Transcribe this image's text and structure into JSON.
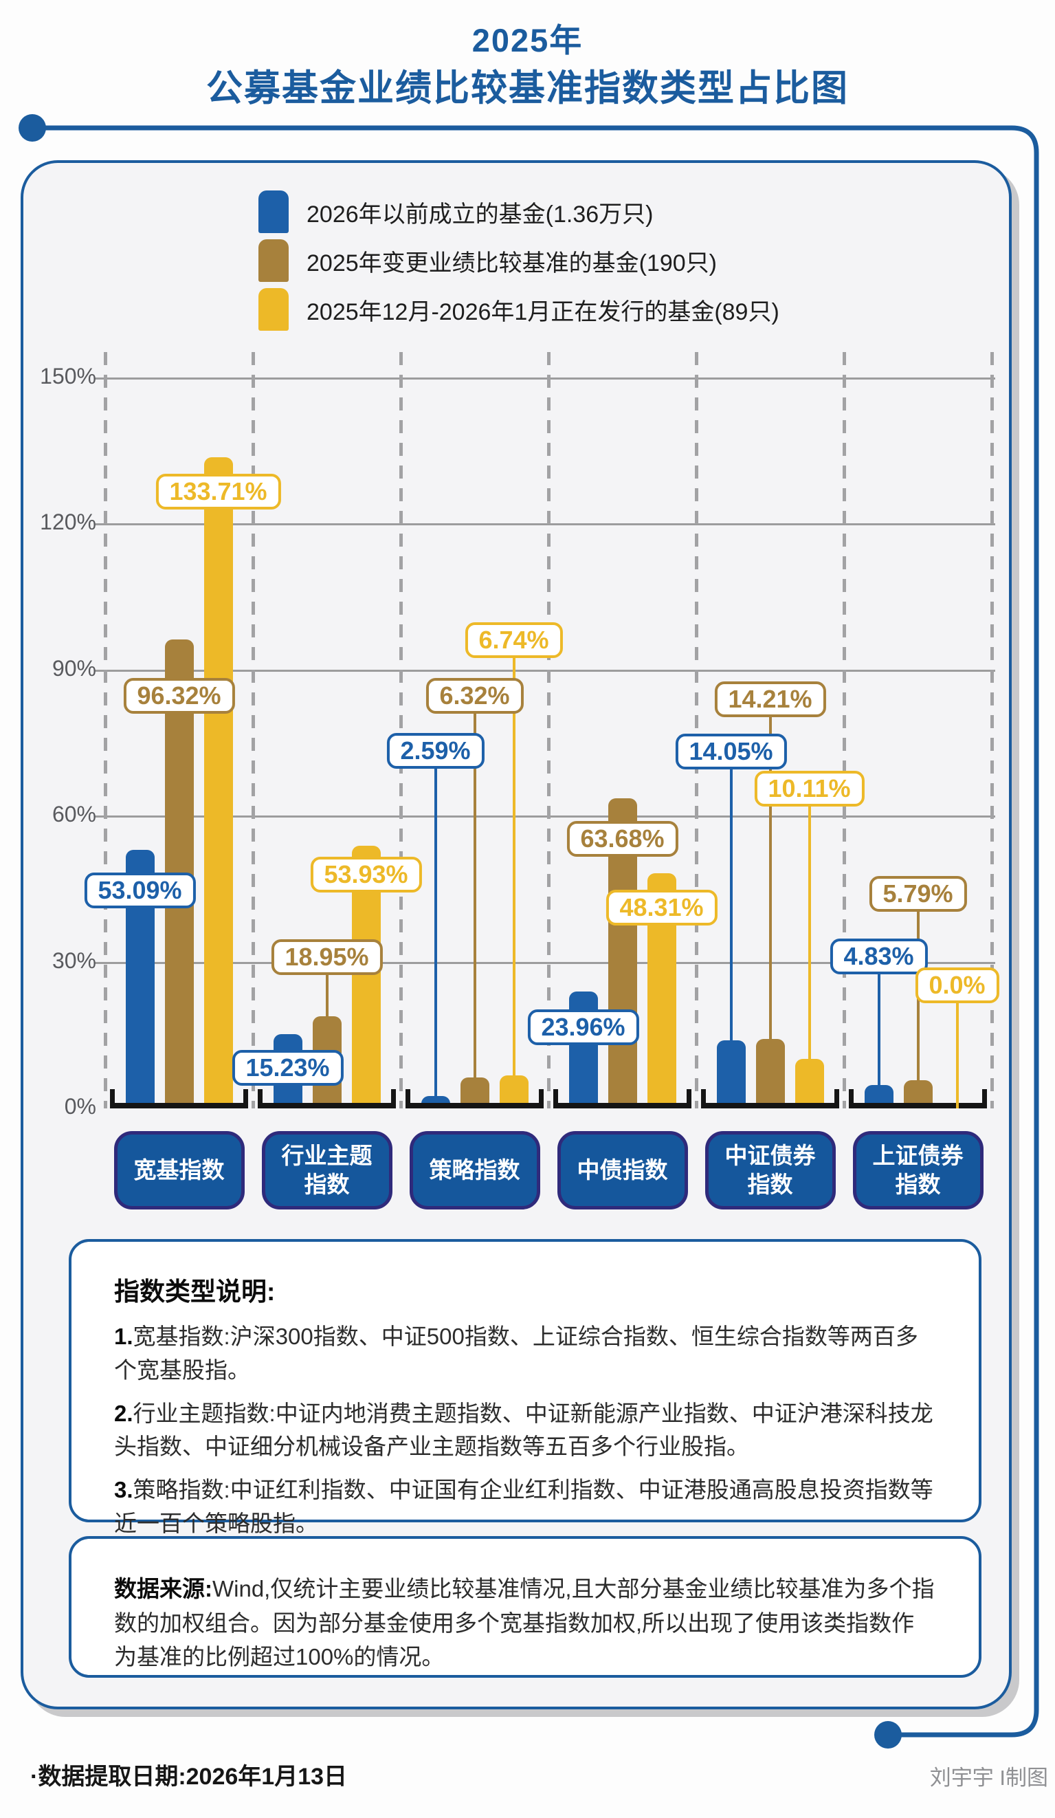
{
  "title": {
    "line1": "2025年",
    "line2": "公募基金业绩比较基准指数类型占比图"
  },
  "accent_color": "#1b5c9e",
  "chart_data": {
    "type": "bar",
    "title": "2025年公募基金业绩比较基准指数类型占比图",
    "xlabel": "",
    "ylabel": "",
    "ylim": [
      0,
      150
    ],
    "grid": true,
    "legend_position": "top-inside",
    "y_ticks": [
      "0%",
      "30%",
      "60%",
      "90%",
      "120%",
      "150%"
    ],
    "categories": [
      "宽基指数",
      "行业主题\n指数",
      "策略指数",
      "中债指数",
      "中证债券\n指数",
      "上证债券\n指数"
    ],
    "series": [
      {
        "name": "2026年以前成立的基金(1.36万只)",
        "color": "#1d60a9",
        "values": [
          53.09,
          15.23,
          2.59,
          23.96,
          14.05,
          4.83
        ],
        "labels": [
          "53.09%",
          "15.23%",
          "2.59%",
          "23.96%",
          "14.05%",
          "4.83%"
        ],
        "label_cy": [
          1295,
          1553,
          1092,
          1494,
          1093,
          1391
        ]
      },
      {
        "name": "2025年变更业绩比较基准的基金(190只)",
        "color": "#a7813c",
        "values": [
          96.32,
          18.95,
          6.32,
          63.68,
          14.21,
          5.79
        ],
        "labels": [
          "96.32%",
          "18.95%",
          "6.32%",
          "63.68%",
          "14.21%",
          "5.79%"
        ],
        "label_cy": [
          1012,
          1392,
          1012,
          1220,
          1017,
          1300
        ]
      },
      {
        "name": "2025年12月-2026年1月正在发行的基金(89只)",
        "color": "#edb928",
        "values": [
          133.71,
          53.93,
          6.74,
          48.31,
          10.11,
          0.0
        ],
        "labels": [
          "133.71%",
          "53.93%",
          "6.74%",
          "48.31%",
          "10.11%",
          "0.0%"
        ],
        "label_cy": [
          715,
          1272,
          931,
          1320,
          1147,
          1433
        ]
      }
    ]
  },
  "notes": {
    "heading": "指数类型说明:",
    "items": [
      {
        "num": "1.",
        "text": "宽基指数:沪深300指数、中证500指数、上证综合指数、恒生综合指数等两百多个宽基股指。"
      },
      {
        "num": "2.",
        "text": "行业主题指数:中证内地消费主题指数、中证新能源产业指数、中证沪港深科技龙头指数、中证细分机械设备产业主题指数等五百多个行业股指。"
      },
      {
        "num": "3.",
        "text": "策略指数:中证红利指数、中证国有企业红利指数、中证港股通高股息投资指数等近一百个策略股指。"
      }
    ]
  },
  "source": {
    "label": "数据来源:",
    "text": "Wind,仅统计主要业绩比较基准情况,且大部分基金业绩比较基准为多个指数的加权组合。因为部分基金使用多个宽基指数加权,所以出现了使用该类指数作为基准的比例超过100%的情况。"
  },
  "footer": {
    "left": "·数据提取日期:2026年1月13日",
    "right": "刘宇宇 I制图"
  }
}
